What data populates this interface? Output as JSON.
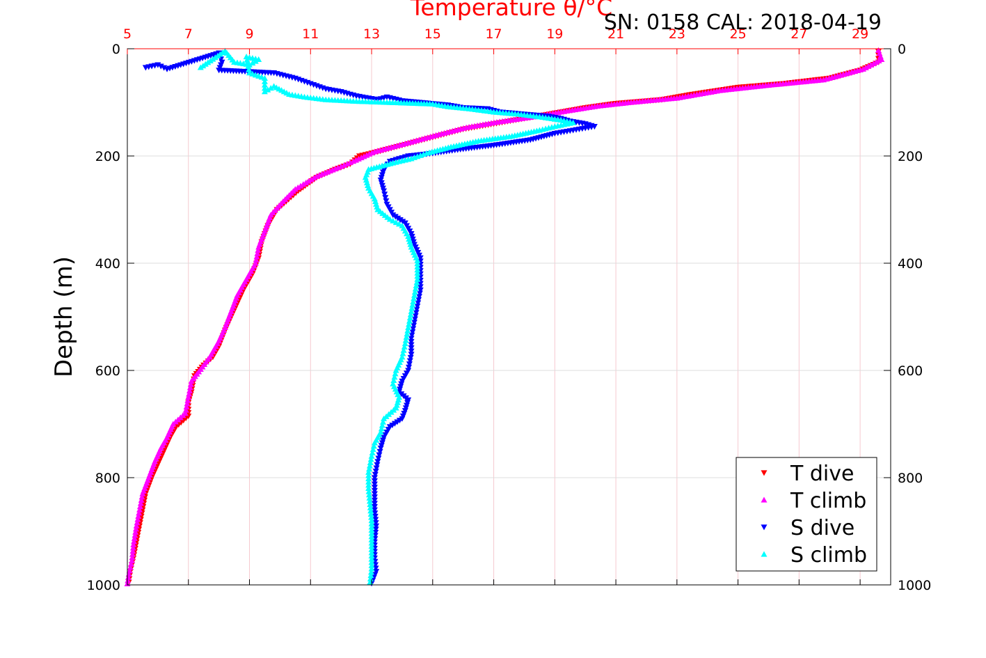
{
  "header": {
    "sn_label": "SN: 0158  CAL: 2018-04-19"
  },
  "chart_data": {
    "type": "scatter",
    "title": "Temperature θ/°C",
    "title_color": "#ff0000",
    "xlabel": "",
    "ylabel": "Depth (m)",
    "xlim": [
      5,
      30
    ],
    "ylim": [
      0,
      1000
    ],
    "y_reversed": true,
    "x_axis_position": "top",
    "x_ticks": [
      5,
      7,
      9,
      11,
      13,
      15,
      17,
      19,
      21,
      23,
      25,
      27,
      29
    ],
    "x_tick_color": "#ff0000",
    "y_ticks": [
      0,
      200,
      400,
      600,
      800,
      1000
    ],
    "y_ticks_right": true,
    "grid": true,
    "legend_position": "bottom-right",
    "series": [
      {
        "name": "T dive",
        "color": "#ff0000",
        "marker": "triangle-down",
        "points": [
          [
            29.6,
            5
          ],
          [
            29.6,
            25
          ],
          [
            29.0,
            40
          ],
          [
            28.0,
            55
          ],
          [
            26.5,
            65
          ],
          [
            25.0,
            72
          ],
          [
            23.5,
            85
          ],
          [
            22.5,
            95
          ],
          [
            21.0,
            102
          ],
          [
            20.0,
            110
          ],
          [
            19.0,
            120
          ],
          [
            18.0,
            130
          ],
          [
            17.0,
            140
          ],
          [
            16.0,
            150
          ],
          [
            15.0,
            165
          ],
          [
            14.0,
            180
          ],
          [
            13.2,
            192
          ],
          [
            12.6,
            200
          ],
          [
            12.3,
            215
          ],
          [
            11.8,
            225
          ],
          [
            11.2,
            240
          ],
          [
            10.6,
            265
          ],
          [
            10.2,
            285
          ],
          [
            9.9,
            300
          ],
          [
            9.6,
            330
          ],
          [
            9.4,
            360
          ],
          [
            9.3,
            390
          ],
          [
            9.1,
            420
          ],
          [
            8.8,
            450
          ],
          [
            8.6,
            475
          ],
          [
            8.4,
            500
          ],
          [
            8.2,
            525
          ],
          [
            8.0,
            555
          ],
          [
            7.8,
            575
          ],
          [
            7.5,
            590
          ],
          [
            7.2,
            610
          ],
          [
            7.1,
            640
          ],
          [
            7.0,
            660
          ],
          [
            7.0,
            685
          ],
          [
            6.6,
            705
          ],
          [
            6.4,
            725
          ],
          [
            6.2,
            750
          ],
          [
            6.0,
            775
          ],
          [
            5.8,
            800
          ],
          [
            5.6,
            830
          ],
          [
            5.5,
            860
          ],
          [
            5.4,
            890
          ],
          [
            5.3,
            920
          ],
          [
            5.2,
            950
          ],
          [
            5.1,
            975
          ],
          [
            5.05,
            995
          ]
        ]
      },
      {
        "name": "T climb",
        "color": "#ff00ff",
        "marker": "triangle-up",
        "points": [
          [
            29.6,
            3
          ],
          [
            29.7,
            20
          ],
          [
            29.1,
            38
          ],
          [
            27.8,
            58
          ],
          [
            26.0,
            68
          ],
          [
            24.4,
            78
          ],
          [
            23.0,
            92
          ],
          [
            21.5,
            100
          ],
          [
            20.4,
            107
          ],
          [
            19.3,
            117
          ],
          [
            18.3,
            127
          ],
          [
            17.1,
            137
          ],
          [
            16.1,
            147
          ],
          [
            15.2,
            160
          ],
          [
            14.1,
            177
          ],
          [
            13.1,
            192
          ],
          [
            12.4,
            210
          ],
          [
            11.9,
            222
          ],
          [
            11.2,
            238
          ],
          [
            10.5,
            262
          ],
          [
            10.1,
            285
          ],
          [
            9.7,
            310
          ],
          [
            9.5,
            340
          ],
          [
            9.3,
            370
          ],
          [
            9.2,
            400
          ],
          [
            8.9,
            430
          ],
          [
            8.6,
            460
          ],
          [
            8.4,
            490
          ],
          [
            8.2,
            520
          ],
          [
            8.0,
            545
          ],
          [
            7.7,
            575
          ],
          [
            7.4,
            598
          ],
          [
            7.1,
            620
          ],
          [
            7.0,
            650
          ],
          [
            6.9,
            680
          ],
          [
            6.5,
            700
          ],
          [
            6.3,
            725
          ],
          [
            6.1,
            745
          ],
          [
            5.9,
            770
          ],
          [
            5.7,
            800
          ],
          [
            5.5,
            830
          ],
          [
            5.4,
            860
          ],
          [
            5.3,
            890
          ],
          [
            5.2,
            925
          ],
          [
            5.15,
            955
          ],
          [
            5.05,
            980
          ],
          [
            5.0,
            998
          ]
        ]
      },
      {
        "name": "S dive",
        "color": "#0000ff",
        "marker": "triangle-down",
        "points": [
          [
            5.6,
            35
          ],
          [
            6.0,
            30
          ],
          [
            6.3,
            38
          ],
          [
            8.0,
            8
          ],
          [
            8.1,
            25
          ],
          [
            8.0,
            40
          ],
          [
            9.8,
            45
          ],
          [
            10.5,
            55
          ],
          [
            11.0,
            65
          ],
          [
            11.5,
            75
          ],
          [
            12.0,
            80
          ],
          [
            12.5,
            88
          ],
          [
            13.2,
            95
          ],
          [
            13.5,
            90
          ],
          [
            14.0,
            97
          ],
          [
            15.5,
            105
          ],
          [
            16.0,
            110
          ],
          [
            16.8,
            112
          ],
          [
            17.2,
            118
          ],
          [
            18.0,
            122
          ],
          [
            18.8,
            126
          ],
          [
            19.2,
            130
          ],
          [
            19.5,
            135
          ],
          [
            20.0,
            140
          ],
          [
            20.3,
            145
          ],
          [
            19.8,
            150
          ],
          [
            19.0,
            158
          ],
          [
            18.2,
            170
          ],
          [
            17.0,
            180
          ],
          [
            16.0,
            187
          ],
          [
            15.0,
            195
          ],
          [
            14.2,
            200
          ],
          [
            13.6,
            210
          ],
          [
            13.4,
            225
          ],
          [
            13.3,
            245
          ],
          [
            13.4,
            265
          ],
          [
            13.5,
            290
          ],
          [
            13.7,
            310
          ],
          [
            14.1,
            325
          ],
          [
            14.3,
            345
          ],
          [
            14.4,
            365
          ],
          [
            14.6,
            390
          ],
          [
            14.6,
            420
          ],
          [
            14.6,
            450
          ],
          [
            14.5,
            480
          ],
          [
            14.4,
            510
          ],
          [
            14.3,
            540
          ],
          [
            14.3,
            570
          ],
          [
            14.2,
            600
          ],
          [
            14.0,
            620
          ],
          [
            13.9,
            640
          ],
          [
            14.2,
            655
          ],
          [
            14.1,
            675
          ],
          [
            14.0,
            690
          ],
          [
            13.6,
            705
          ],
          [
            13.4,
            725
          ],
          [
            13.3,
            745
          ],
          [
            13.2,
            770
          ],
          [
            13.1,
            800
          ],
          [
            13.1,
            830
          ],
          [
            13.1,
            860
          ],
          [
            13.15,
            890
          ],
          [
            13.1,
            920
          ],
          [
            13.1,
            950
          ],
          [
            13.15,
            975
          ],
          [
            13.0,
            997
          ]
        ]
      },
      {
        "name": "S climb",
        "color": "#00ffff",
        "marker": "triangle-up",
        "points": [
          [
            7.4,
            35
          ],
          [
            8.2,
            4
          ],
          [
            8.5,
            25
          ],
          [
            9.0,
            30
          ],
          [
            9.3,
            20
          ],
          [
            8.9,
            15
          ],
          [
            9.0,
            45
          ],
          [
            9.5,
            55
          ],
          [
            9.5,
            80
          ],
          [
            9.8,
            70
          ],
          [
            10.3,
            85
          ],
          [
            10.8,
            90
          ],
          [
            11.5,
            95
          ],
          [
            12.5,
            98
          ],
          [
            13.5,
            100
          ],
          [
            15.0,
            103
          ],
          [
            15.5,
            108
          ],
          [
            16.2,
            112
          ],
          [
            17.0,
            118
          ],
          [
            17.8,
            122
          ],
          [
            18.5,
            127
          ],
          [
            19.2,
            133
          ],
          [
            19.6,
            138
          ],
          [
            19.0,
            145
          ],
          [
            18.5,
            152
          ],
          [
            17.6,
            163
          ],
          [
            16.5,
            172
          ],
          [
            15.6,
            183
          ],
          [
            14.8,
            195
          ],
          [
            14.3,
            205
          ],
          [
            13.7,
            213
          ],
          [
            12.9,
            225
          ],
          [
            12.8,
            240
          ],
          [
            12.9,
            260
          ],
          [
            13.1,
            280
          ],
          [
            13.2,
            300
          ],
          [
            13.6,
            318
          ],
          [
            14.0,
            330
          ],
          [
            14.2,
            350
          ],
          [
            14.3,
            370
          ],
          [
            14.5,
            395
          ],
          [
            14.5,
            430
          ],
          [
            14.4,
            460
          ],
          [
            14.3,
            490
          ],
          [
            14.2,
            520
          ],
          [
            14.1,
            550
          ],
          [
            14.0,
            575
          ],
          [
            13.8,
            600
          ],
          [
            13.7,
            625
          ],
          [
            13.9,
            650
          ],
          [
            13.8,
            670
          ],
          [
            13.4,
            690
          ],
          [
            13.3,
            715
          ],
          [
            13.1,
            735
          ],
          [
            13.0,
            760
          ],
          [
            12.9,
            790
          ],
          [
            12.9,
            820
          ],
          [
            12.95,
            850
          ],
          [
            13.0,
            880
          ],
          [
            13.0,
            910
          ],
          [
            13.0,
            940
          ],
          [
            13.0,
            970
          ],
          [
            12.95,
            995
          ]
        ]
      }
    ]
  }
}
